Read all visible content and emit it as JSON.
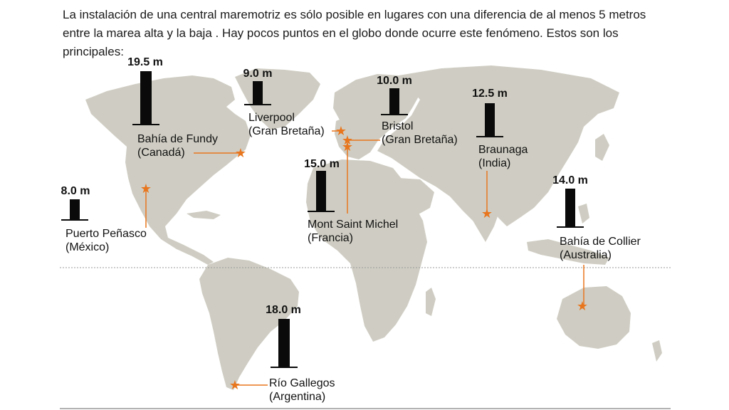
{
  "intro": {
    "line1": "La instalación de una central maremotriz es sólo posible en lugares con una diferencia de al menos 5 metros",
    "line2": "entre la marea alta y la baja . Hay pocos puntos en el globo donde ocurre este fenómeno. Estos son los",
    "line3": "principales:"
  },
  "colors": {
    "land": "#cfcdc3",
    "bar": "#0a0a0a",
    "marker": "#e8761e",
    "equator": "#999999"
  },
  "icons": {
    "marker": "star-icon"
  },
  "sites": [
    {
      "id": "fundy",
      "value": "19.5 m",
      "name": "Bahía de Fundy",
      "country": "(Canadá)",
      "tide_m": 19.5
    },
    {
      "id": "liverpool",
      "value": "9.0 m",
      "name": "Liverpool",
      "country": "(Gran Bretaña)",
      "tide_m": 9.0
    },
    {
      "id": "bristol",
      "value": "10.0 m",
      "name": "Bristol",
      "country": "(Gran Bretaña)",
      "tide_m": 10.0
    },
    {
      "id": "braunaga",
      "value": "12.5 m",
      "name": "Braunaga",
      "country": "(India)",
      "tide_m": 12.5
    },
    {
      "id": "penasco",
      "value": "8.0 m",
      "name": "Puerto Peñasco",
      "country": "(México)",
      "tide_m": 8.0
    },
    {
      "id": "msm",
      "value": "15.0 m",
      "name": "Mont Saint Michel",
      "country": "(Francia)",
      "tide_m": 15.0
    },
    {
      "id": "collier",
      "value": "14.0 m",
      "name": "Bahía de Collier",
      "country": "(Australia)",
      "tide_m": 14.0
    },
    {
      "id": "gallegos",
      "value": "18.0 m",
      "name": "Río Gallegos",
      "country": "(Argentina)",
      "tide_m": 18.0
    }
  ]
}
